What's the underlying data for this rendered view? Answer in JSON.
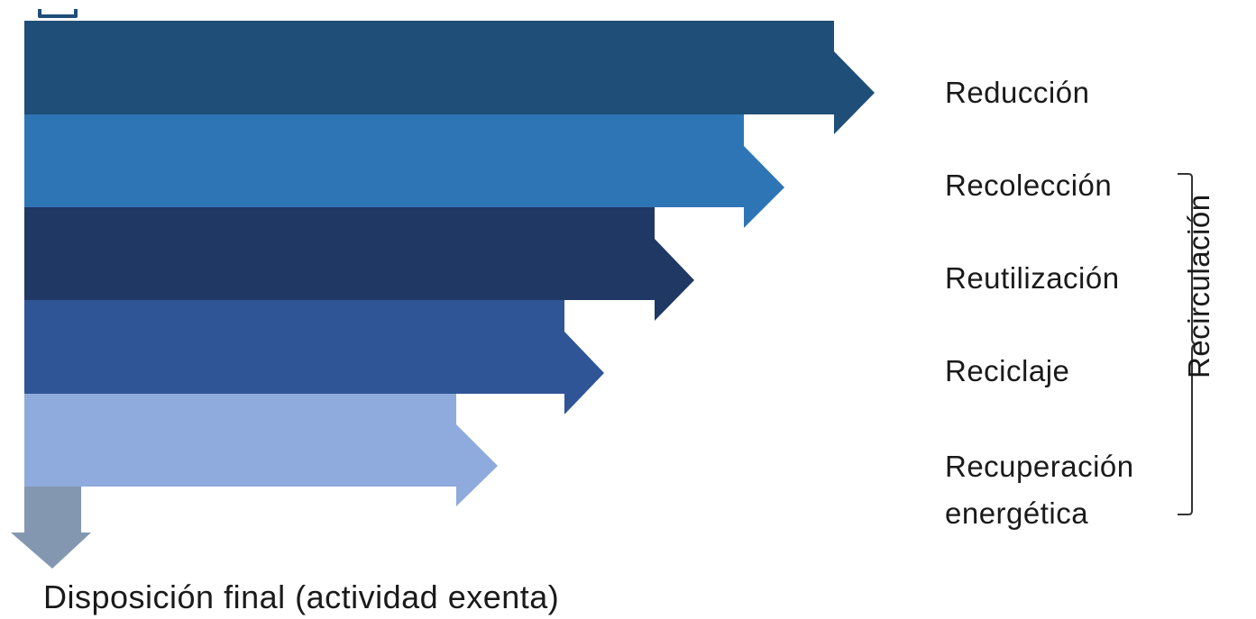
{
  "steps": [
    {
      "label": "Reducción",
      "color": "#1f4e79"
    },
    {
      "label": "Recolección",
      "color": "#2e75b6"
    },
    {
      "label": "Reutilización",
      "color": "#203864"
    },
    {
      "label": "Reciclaje",
      "color": "#2f5597"
    },
    {
      "label_lines": [
        "Recuperación",
        "energética"
      ],
      "color": "#8faadc"
    }
  ],
  "bracket": {
    "label": "Recirculación",
    "covers_steps": [
      "Recolección",
      "Reutilización",
      "Reciclaje",
      "Recuperación energética"
    ]
  },
  "final_disposal": {
    "label": "Disposición final (actividad exenta)",
    "arrow_color": "#8497b0"
  },
  "top_marker_color": "#1f4e79"
}
